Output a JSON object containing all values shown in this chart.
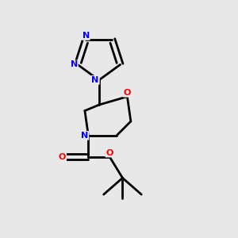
{
  "bg_color": "#e8e8e8",
  "bond_color": "#000000",
  "N_color": "#0000ff",
  "O_color": "#ff0000",
  "bond_width": 2.0,
  "fig_size": [
    3.0,
    3.0
  ],
  "dpi": 100,
  "xlim": [
    0.05,
    0.75
  ],
  "ylim": [
    0.0,
    1.0
  ]
}
